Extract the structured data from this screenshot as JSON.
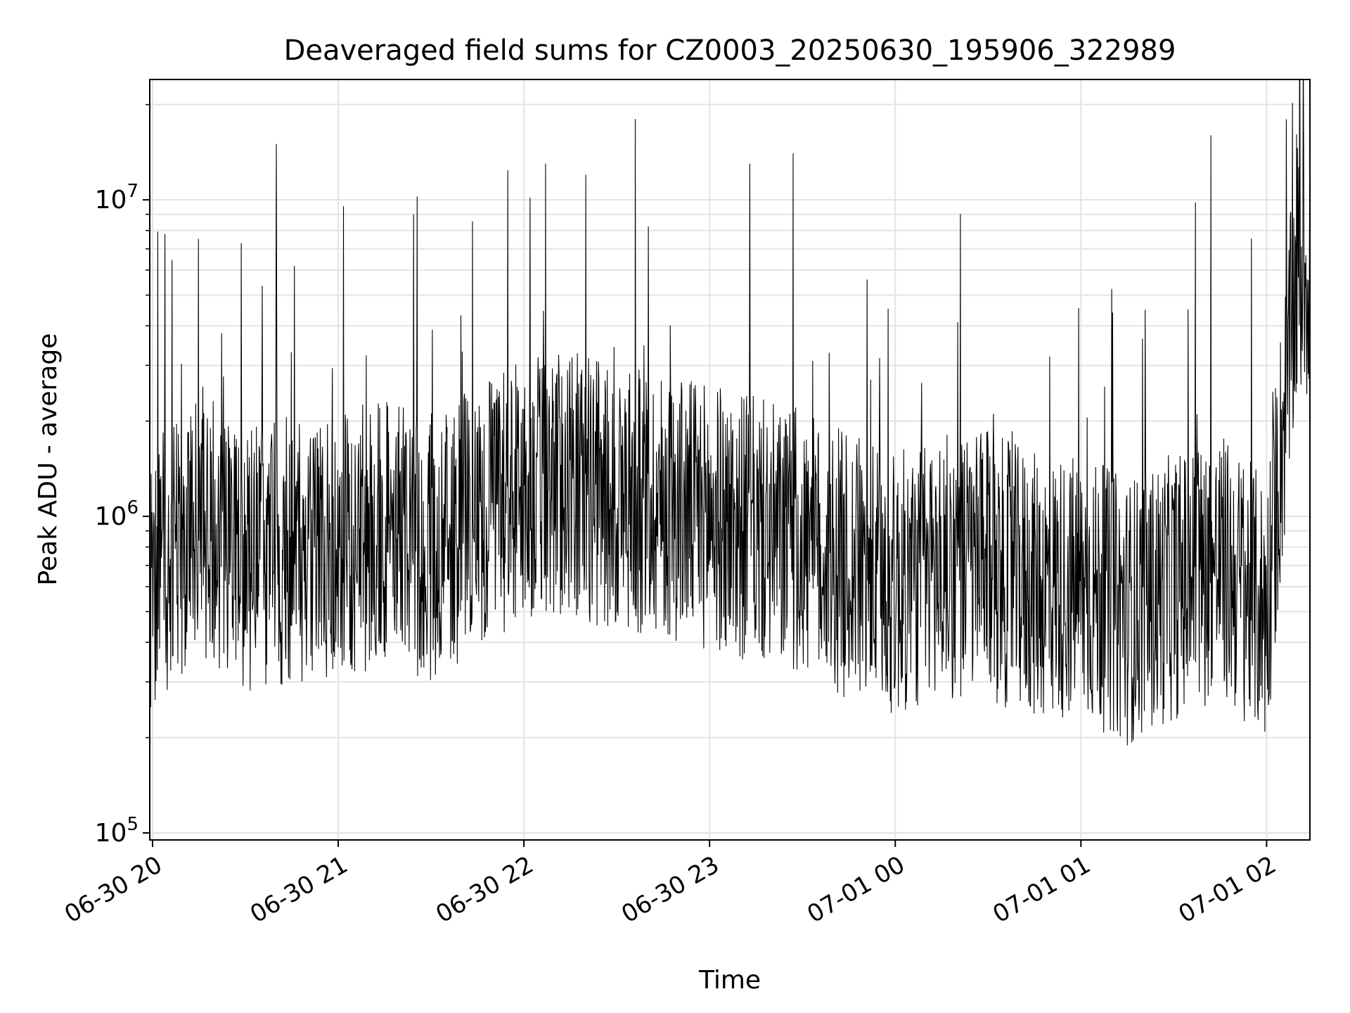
{
  "chart_data": {
    "type": "line",
    "title": "Deaveraged field sums for CZ0003_20250630_195906_322989",
    "xlabel": "Time",
    "ylabel": "Peak ADU - average",
    "x_range": [
      "2025-06-30T19:59:06",
      "2025-07-01T02:14:00"
    ],
    "x_ticks": [
      "06-30 20",
      "06-30 21",
      "06-30 22",
      "06-30 23",
      "07-01 00",
      "07-01 01",
      "07-01 02"
    ],
    "x_tick_times": [
      "2025-06-30T20:00",
      "2025-06-30T21:00",
      "2025-06-30T22:00",
      "2025-06-30T23:00",
      "2025-07-01T00:00",
      "2025-07-01T01:00",
      "2025-07-01T02:00"
    ],
    "y_scale": "log",
    "ylim": [
      95000,
      24000000
    ],
    "y_ticks": [
      {
        "base": "10",
        "exp": "5",
        "value": 100000
      },
      {
        "base": "10",
        "exp": "6",
        "value": 1000000
      },
      {
        "base": "10",
        "exp": "7",
        "value": 10000000
      }
    ],
    "grid": true,
    "line_color": "#000000",
    "series": [
      {
        "values_note": "estimated envelope of the dense trace, typical level by time",
        "x": [
          "2025-06-30T20:00",
          "2025-06-30T20:15",
          "2025-06-30T20:30",
          "2025-06-30T20:45",
          "2025-06-30T21:00",
          "2025-06-30T21:15",
          "2025-06-30T21:30",
          "2025-06-30T21:45",
          "2025-06-30T22:00",
          "2025-06-30T22:15",
          "2025-06-30T22:30",
          "2025-06-30T22:45",
          "2025-06-30T23:00",
          "2025-06-30T23:15",
          "2025-06-30T23:30",
          "2025-06-30T23:45",
          "2025-07-01T00:00",
          "2025-07-01T00:15",
          "2025-07-01T00:30",
          "2025-07-01T00:45",
          "2025-07-01T01:00",
          "2025-07-01T01:15",
          "2025-07-01T01:30",
          "2025-07-01T01:45",
          "2025-07-01T02:00",
          "2025-07-01T02:10"
        ],
        "values": [
          600000,
          1000000,
          700000,
          800000,
          800000,
          900000,
          800000,
          1000000,
          1200000,
          1300000,
          1100000,
          1100000,
          1000000,
          900000,
          800000,
          700000,
          600000,
          700000,
          700000,
          600000,
          600000,
          500000,
          600000,
          700000,
          500000,
          6000000
        ]
      }
    ],
    "peaks": [
      {
        "x": "2025-06-30T20:40",
        "y": 15000000
      },
      {
        "x": "2025-06-30T22:07",
        "y": 13000000
      },
      {
        "x": "2025-06-30T22:20",
        "y": 12000000
      },
      {
        "x": "2025-06-30T22:36",
        "y": 18000000
      },
      {
        "x": "2025-06-30T23:13",
        "y": 13000000
      },
      {
        "x": "2025-06-30T23:27",
        "y": 14000000
      },
      {
        "x": "2025-07-01T01:42",
        "y": 16000000
      },
      {
        "x": "2025-07-01T01:37",
        "y": 9800000
      }
    ]
  }
}
